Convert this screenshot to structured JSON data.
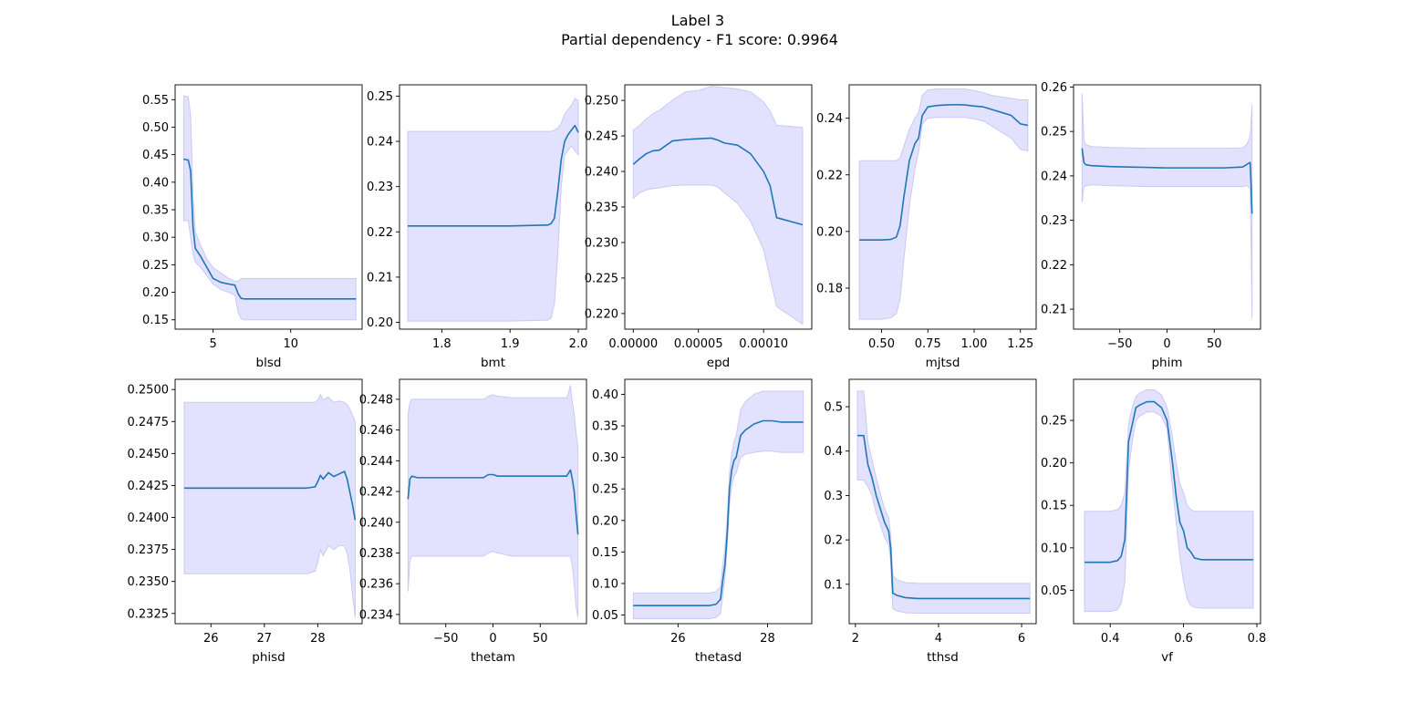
{
  "figure": {
    "title_line1": "Label 3",
    "title_line2": "Partial dependency - F1 score: 0.9964"
  },
  "colors": {
    "line": "#1f77b4",
    "band": "#e2e2ff",
    "band_edge": "#c9c9f5"
  },
  "chart_data": [
    {
      "type": "line",
      "xlabel": "blsd",
      "xlim": [
        2.55,
        14.6
      ],
      "ylim": [
        0.133,
        0.577
      ],
      "xticks": [
        5,
        10
      ],
      "yticks": [
        0.15,
        0.2,
        0.25,
        0.3,
        0.35,
        0.4,
        0.45,
        0.5,
        0.55
      ],
      "x": [
        3.1,
        3.4,
        3.55,
        3.7,
        3.85,
        4.2,
        4.6,
        5.0,
        5.5,
        6.0,
        6.4,
        6.6,
        6.8,
        7.0,
        8.0,
        14.2
      ],
      "y": [
        0.442,
        0.44,
        0.42,
        0.32,
        0.28,
        0.265,
        0.245,
        0.225,
        0.218,
        0.215,
        0.213,
        0.198,
        0.189,
        0.188,
        0.188,
        0.188
      ],
      "lower": [
        0.33,
        0.33,
        0.3,
        0.27,
        0.255,
        0.245,
        0.23,
        0.215,
        0.205,
        0.2,
        0.195,
        0.165,
        0.152,
        0.15,
        0.15,
        0.15
      ],
      "upper": [
        0.557,
        0.555,
        0.52,
        0.38,
        0.31,
        0.285,
        0.26,
        0.245,
        0.235,
        0.225,
        0.22,
        0.22,
        0.225,
        0.225,
        0.225,
        0.225
      ]
    },
    {
      "type": "line",
      "xlabel": "bmt",
      "xlim": [
        1.738,
        2.012
      ],
      "ylim": [
        0.1985,
        0.2525
      ],
      "xticks": [
        1.8,
        1.9,
        2.0
      ],
      "yticks": [
        0.2,
        0.21,
        0.22,
        0.23,
        0.24,
        0.25
      ],
      "x": [
        1.75,
        1.9,
        1.955,
        1.96,
        1.965,
        1.97,
        1.975,
        1.98,
        1.985,
        1.99,
        1.995,
        2.0
      ],
      "y": [
        0.2213,
        0.2213,
        0.2215,
        0.2218,
        0.223,
        0.229,
        0.236,
        0.24,
        0.2415,
        0.2425,
        0.2435,
        0.242
      ],
      "lower": [
        0.2003,
        0.2003,
        0.2005,
        0.201,
        0.204,
        0.215,
        0.23,
        0.237,
        0.238,
        0.239,
        0.238,
        0.237
      ],
      "upper": [
        0.2422,
        0.2422,
        0.2422,
        0.2422,
        0.2425,
        0.243,
        0.244,
        0.246,
        0.247,
        0.248,
        0.2495,
        0.249
      ]
    },
    {
      "type": "line",
      "xlabel": "epd",
      "xlim": [
        -6.5e-06,
        0.000137
      ],
      "ylim": [
        0.2178,
        0.2522
      ],
      "xticks": [
        0.0,
        5e-05,
        0.0001
      ],
      "xtick_labels": [
        "0.00000",
        "0.00005",
        "0.00010"
      ],
      "yticks": [
        0.22,
        0.225,
        0.23,
        0.235,
        0.24,
        0.245,
        0.25
      ],
      "x": [
        0.0,
        5e-06,
        1e-05,
        1.5e-05,
        2e-05,
        3e-05,
        4e-05,
        5e-05,
        6e-05,
        6.5e-05,
        7e-05,
        8e-05,
        9e-05,
        0.0001,
        0.000105,
        0.00011,
        0.00013
      ],
      "y": [
        0.241,
        0.2418,
        0.2425,
        0.2429,
        0.243,
        0.2443,
        0.2445,
        0.2446,
        0.2447,
        0.2444,
        0.244,
        0.2437,
        0.2425,
        0.24,
        0.238,
        0.2335,
        0.2325
      ],
      "lower": [
        0.2362,
        0.237,
        0.2374,
        0.2376,
        0.2377,
        0.238,
        0.2381,
        0.2381,
        0.2381,
        0.2378,
        0.237,
        0.2355,
        0.233,
        0.229,
        0.225,
        0.221,
        0.2185
      ],
      "upper": [
        0.2458,
        0.2465,
        0.2474,
        0.2481,
        0.2486,
        0.25,
        0.2512,
        0.2514,
        0.252,
        0.2519,
        0.2518,
        0.2516,
        0.2512,
        0.2498,
        0.2485,
        0.2465,
        0.2462
      ]
    },
    {
      "type": "line",
      "xlabel": "mjtsd",
      "xlim": [
        0.325,
        1.335
      ],
      "ylim": [
        0.1655,
        0.2518
      ],
      "xticks": [
        0.5,
        0.75,
        1.0,
        1.25
      ],
      "xtick_labels": [
        "0.50",
        "0.75",
        "1.00",
        "1.25"
      ],
      "yticks": [
        0.18,
        0.2,
        0.22,
        0.24
      ],
      "x": [
        0.38,
        0.5,
        0.55,
        0.58,
        0.6,
        0.62,
        0.65,
        0.68,
        0.7,
        0.72,
        0.75,
        0.8,
        0.85,
        0.9,
        0.95,
        1.0,
        1.05,
        1.1,
        1.15,
        1.2,
        1.25,
        1.29
      ],
      "y": [
        0.197,
        0.197,
        0.1972,
        0.198,
        0.202,
        0.212,
        0.225,
        0.231,
        0.233,
        0.241,
        0.244,
        0.2445,
        0.2447,
        0.2448,
        0.2447,
        0.2443,
        0.244,
        0.243,
        0.242,
        0.241,
        0.238,
        0.2375
      ],
      "lower": [
        0.169,
        0.169,
        0.1695,
        0.171,
        0.176,
        0.19,
        0.209,
        0.222,
        0.228,
        0.238,
        0.24,
        0.2403,
        0.2403,
        0.2403,
        0.2403,
        0.2398,
        0.239,
        0.237,
        0.235,
        0.233,
        0.229,
        0.2285
      ],
      "upper": [
        0.225,
        0.225,
        0.225,
        0.225,
        0.226,
        0.23,
        0.236,
        0.24,
        0.242,
        0.248,
        0.25,
        0.2503,
        0.2503,
        0.2503,
        0.2503,
        0.2498,
        0.249,
        0.248,
        0.2475,
        0.247,
        0.2465,
        0.2465
      ]
    },
    {
      "type": "line",
      "xlabel": "phim",
      "xlim": [
        -99,
        99
      ],
      "ylim": [
        0.2055,
        0.2605
      ],
      "xticks": [
        -50,
        0,
        50
      ],
      "xtick_labels": [
        "−50",
        "0",
        "50"
      ],
      "yticks": [
        0.21,
        0.22,
        0.23,
        0.24,
        0.25,
        0.26
      ],
      "x": [
        -90,
        -88,
        -86,
        -80,
        -60,
        -40,
        -20,
        0,
        20,
        40,
        60,
        80,
        84,
        86,
        88,
        89,
        90
      ],
      "y": [
        0.2462,
        0.243,
        0.2425,
        0.2423,
        0.2421,
        0.242,
        0.2419,
        0.2418,
        0.2418,
        0.2418,
        0.2418,
        0.242,
        0.2425,
        0.2428,
        0.243,
        0.238,
        0.2315
      ],
      "lower": [
        0.234,
        0.2375,
        0.2378,
        0.238,
        0.2378,
        0.2377,
        0.2376,
        0.2376,
        0.2376,
        0.2376,
        0.2376,
        0.2376,
        0.2378,
        0.2376,
        0.237,
        0.225,
        0.208
      ],
      "upper": [
        0.2585,
        0.248,
        0.247,
        0.2466,
        0.2464,
        0.2463,
        0.2462,
        0.2462,
        0.2462,
        0.2462,
        0.2462,
        0.2463,
        0.247,
        0.2478,
        0.249,
        0.252,
        0.256
      ]
    },
    {
      "type": "line",
      "xlabel": "phisd",
      "xlim": [
        25.33,
        28.83
      ],
      "ylim": [
        0.2317,
        0.2508
      ],
      "xticks": [
        26,
        27,
        28
      ],
      "yticks": [
        0.2325,
        0.235,
        0.2375,
        0.24,
        0.2425,
        0.245,
        0.2475,
        0.25
      ],
      "x": [
        25.5,
        27.8,
        27.95,
        28.0,
        28.05,
        28.1,
        28.2,
        28.3,
        28.4,
        28.5,
        28.55,
        28.6,
        28.65,
        28.7
      ],
      "y": [
        0.2423,
        0.2423,
        0.2424,
        0.2428,
        0.2433,
        0.243,
        0.2435,
        0.2432,
        0.2434,
        0.2436,
        0.243,
        0.242,
        0.241,
        0.2398
      ],
      "lower": [
        0.2356,
        0.2356,
        0.2358,
        0.2365,
        0.2375,
        0.237,
        0.2378,
        0.2375,
        0.2378,
        0.2378,
        0.2372,
        0.236,
        0.234,
        0.2322
      ],
      "upper": [
        0.249,
        0.249,
        0.249,
        0.2492,
        0.2496,
        0.2492,
        0.2494,
        0.249,
        0.2491,
        0.249,
        0.2488,
        0.2485,
        0.248,
        0.2475
      ]
    },
    {
      "type": "line",
      "xlabel": "thetam",
      "xlim": [
        -99,
        99
      ],
      "ylim": [
        0.2334,
        0.2493
      ],
      "xticks": [
        -50,
        0,
        50
      ],
      "xtick_labels": [
        "−50",
        "0",
        "50"
      ],
      "yticks": [
        0.234,
        0.236,
        0.238,
        0.24,
        0.242,
        0.244,
        0.246,
        0.248
      ],
      "x": [
        -90,
        -88,
        -86,
        -80,
        -60,
        -40,
        -20,
        -10,
        -5,
        0,
        5,
        20,
        40,
        60,
        78,
        80,
        82,
        84,
        86,
        88,
        90
      ],
      "y": [
        0.2415,
        0.2428,
        0.243,
        0.2429,
        0.2429,
        0.2429,
        0.2429,
        0.2429,
        0.2431,
        0.2431,
        0.243,
        0.243,
        0.243,
        0.243,
        0.243,
        0.2432,
        0.2434,
        0.2428,
        0.242,
        0.2405,
        0.2392
      ],
      "lower": [
        0.2355,
        0.2375,
        0.2378,
        0.2378,
        0.2378,
        0.2378,
        0.2378,
        0.2378,
        0.238,
        0.2381,
        0.238,
        0.2378,
        0.2378,
        0.2378,
        0.2378,
        0.2378,
        0.2378,
        0.2372,
        0.236,
        0.2345,
        0.2338
      ],
      "upper": [
        0.247,
        0.2478,
        0.248,
        0.248,
        0.248,
        0.248,
        0.248,
        0.248,
        0.2482,
        0.2483,
        0.2482,
        0.2481,
        0.2481,
        0.2481,
        0.2481,
        0.2484,
        0.2489,
        0.2478,
        0.247,
        0.2458,
        0.2448
      ]
    },
    {
      "type": "line",
      "xlabel": "thetasd",
      "xlim": [
        24.81,
        28.99
      ],
      "ylim": [
        0.0363,
        0.4238
      ],
      "xticks": [
        26,
        28
      ],
      "yticks": [
        0.05,
        0.1,
        0.15,
        0.2,
        0.25,
        0.3,
        0.35,
        0.4
      ],
      "x": [
        25.0,
        26.7,
        26.85,
        26.95,
        27.0,
        27.05,
        27.1,
        27.15,
        27.2,
        27.25,
        27.3,
        27.4,
        27.5,
        27.7,
        27.9,
        28.1,
        28.3,
        28.8
      ],
      "y": [
        0.065,
        0.065,
        0.067,
        0.075,
        0.105,
        0.13,
        0.18,
        0.25,
        0.28,
        0.295,
        0.3,
        0.335,
        0.343,
        0.353,
        0.358,
        0.358,
        0.356,
        0.356
      ],
      "lower": [
        0.044,
        0.044,
        0.046,
        0.052,
        0.08,
        0.11,
        0.16,
        0.225,
        0.255,
        0.27,
        0.275,
        0.3,
        0.305,
        0.308,
        0.31,
        0.31,
        0.308,
        0.308
      ],
      "upper": [
        0.085,
        0.085,
        0.087,
        0.095,
        0.13,
        0.155,
        0.205,
        0.275,
        0.305,
        0.325,
        0.335,
        0.375,
        0.388,
        0.4,
        0.405,
        0.405,
        0.405,
        0.405
      ]
    },
    {
      "type": "line",
      "xlabel": "tthsd",
      "xlim": [
        1.85,
        6.35
      ],
      "ylim": [
        0.0113,
        0.5617
      ],
      "xticks": [
        2,
        4,
        6
      ],
      "yticks": [
        0.1,
        0.2,
        0.3,
        0.4,
        0.5
      ],
      "x": [
        2.05,
        2.2,
        2.3,
        2.4,
        2.5,
        2.6,
        2.7,
        2.8,
        2.85,
        2.9,
        3.0,
        3.2,
        3.5,
        4.0,
        6.2
      ],
      "y": [
        0.435,
        0.435,
        0.37,
        0.34,
        0.3,
        0.27,
        0.24,
        0.22,
        0.18,
        0.08,
        0.075,
        0.07,
        0.068,
        0.068,
        0.068
      ],
      "lower": [
        0.335,
        0.335,
        0.32,
        0.3,
        0.26,
        0.235,
        0.205,
        0.19,
        0.15,
        0.045,
        0.04,
        0.036,
        0.035,
        0.035,
        0.035
      ],
      "upper": [
        0.535,
        0.535,
        0.42,
        0.38,
        0.34,
        0.305,
        0.27,
        0.25,
        0.21,
        0.12,
        0.11,
        0.104,
        0.102,
        0.102,
        0.102
      ]
    },
    {
      "type": "line",
      "xlabel": "vf",
      "xlim": [
        0.3,
        0.81
      ],
      "ylim": [
        0.0107,
        0.2984
      ],
      "xticks": [
        0.4,
        0.6,
        0.8
      ],
      "yticks": [
        0.05,
        0.1,
        0.15,
        0.2,
        0.25
      ],
      "x": [
        0.33,
        0.4,
        0.42,
        0.43,
        0.44,
        0.45,
        0.46,
        0.47,
        0.48,
        0.5,
        0.52,
        0.54,
        0.555,
        0.57,
        0.58,
        0.59,
        0.6,
        0.61,
        0.62,
        0.63,
        0.65,
        0.79
      ],
      "y": [
        0.083,
        0.083,
        0.085,
        0.09,
        0.11,
        0.225,
        0.245,
        0.265,
        0.268,
        0.272,
        0.272,
        0.265,
        0.25,
        0.2,
        0.16,
        0.13,
        0.12,
        0.1,
        0.095,
        0.088,
        0.086,
        0.086
      ],
      "lower": [
        0.025,
        0.025,
        0.027,
        0.035,
        0.06,
        0.19,
        0.225,
        0.25,
        0.255,
        0.26,
        0.26,
        0.255,
        0.24,
        0.17,
        0.13,
        0.09,
        0.06,
        0.04,
        0.032,
        0.03,
        0.029,
        0.029
      ],
      "upper": [
        0.143,
        0.143,
        0.145,
        0.15,
        0.165,
        0.245,
        0.265,
        0.278,
        0.282,
        0.286,
        0.286,
        0.28,
        0.265,
        0.23,
        0.2,
        0.175,
        0.165,
        0.15,
        0.145,
        0.143,
        0.143,
        0.143
      ]
    }
  ]
}
